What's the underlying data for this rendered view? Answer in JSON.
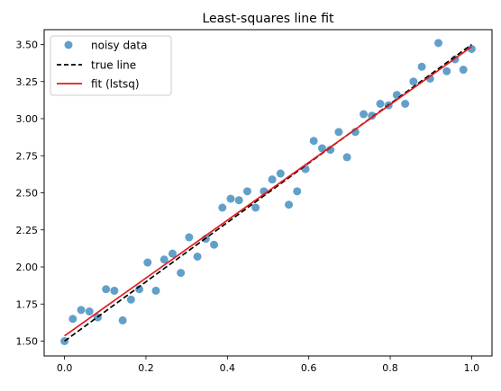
{
  "chart_data": {
    "type": "scatter",
    "title": "Least-squares line fit",
    "xlabel": "",
    "ylabel": "",
    "xlim": [
      -0.05,
      1.05
    ],
    "ylim": [
      1.4,
      3.6
    ],
    "xticks": [
      0.0,
      0.2,
      0.4,
      0.6,
      0.8,
      1.0
    ],
    "xtick_labels": [
      "0.0",
      "0.2",
      "0.4",
      "0.6",
      "0.8",
      "1.0"
    ],
    "yticks": [
      1.5,
      1.75,
      2.0,
      2.25,
      2.5,
      2.75,
      3.0,
      3.25,
      3.5
    ],
    "ytick_labels": [
      "1.50",
      "1.75",
      "2.00",
      "2.25",
      "2.50",
      "2.75",
      "3.00",
      "3.25",
      "3.50"
    ],
    "grid": false,
    "legend_position": "top-left",
    "legend": [
      "noisy data",
      "true line",
      "fit (lstsq)"
    ],
    "colors": {
      "scatter": "#1f77b4",
      "true_line": "#000000",
      "fit_line": "#e41a1c"
    },
    "series": [
      {
        "name": "noisy data",
        "kind": "scatter",
        "x": [
          0.0,
          0.0204,
          0.0408,
          0.0612,
          0.0816,
          0.102,
          0.1224,
          0.1429,
          0.1633,
          0.1837,
          0.2041,
          0.2245,
          0.2449,
          0.2653,
          0.2857,
          0.3061,
          0.3265,
          0.3469,
          0.3673,
          0.3878,
          0.4082,
          0.4286,
          0.449,
          0.4694,
          0.4898,
          0.5102,
          0.5306,
          0.551,
          0.5714,
          0.5918,
          0.6122,
          0.6327,
          0.6531,
          0.6735,
          0.6939,
          0.7143,
          0.7347,
          0.7551,
          0.7755,
          0.7959,
          0.8163,
          0.8367,
          0.8571,
          0.8776,
          0.898,
          0.9184,
          0.9388,
          0.9592,
          0.9796,
          1.0
        ],
        "y": [
          1.5,
          1.65,
          1.71,
          1.7,
          1.66,
          1.85,
          1.84,
          1.64,
          1.78,
          1.85,
          2.03,
          1.84,
          2.05,
          2.09,
          1.96,
          2.2,
          2.07,
          2.19,
          2.15,
          2.4,
          2.46,
          2.45,
          2.51,
          2.4,
          2.51,
          2.59,
          2.63,
          2.42,
          2.51,
          2.66,
          2.85,
          2.8,
          2.79,
          2.91,
          2.74,
          2.91,
          3.03,
          3.02,
          3.1,
          3.09,
          3.16,
          3.1,
          3.25,
          3.35,
          3.27,
          3.51,
          3.32,
          3.4,
          3.33,
          3.47
        ]
      },
      {
        "name": "true line",
        "kind": "line",
        "style": "dashed",
        "x": [
          0.0,
          1.0
        ],
        "y": [
          1.5,
          3.5
        ]
      },
      {
        "name": "fit (lstsq)",
        "kind": "line",
        "style": "solid",
        "x": [
          0.0,
          1.0
        ],
        "y": [
          1.535,
          3.485
        ]
      }
    ]
  }
}
